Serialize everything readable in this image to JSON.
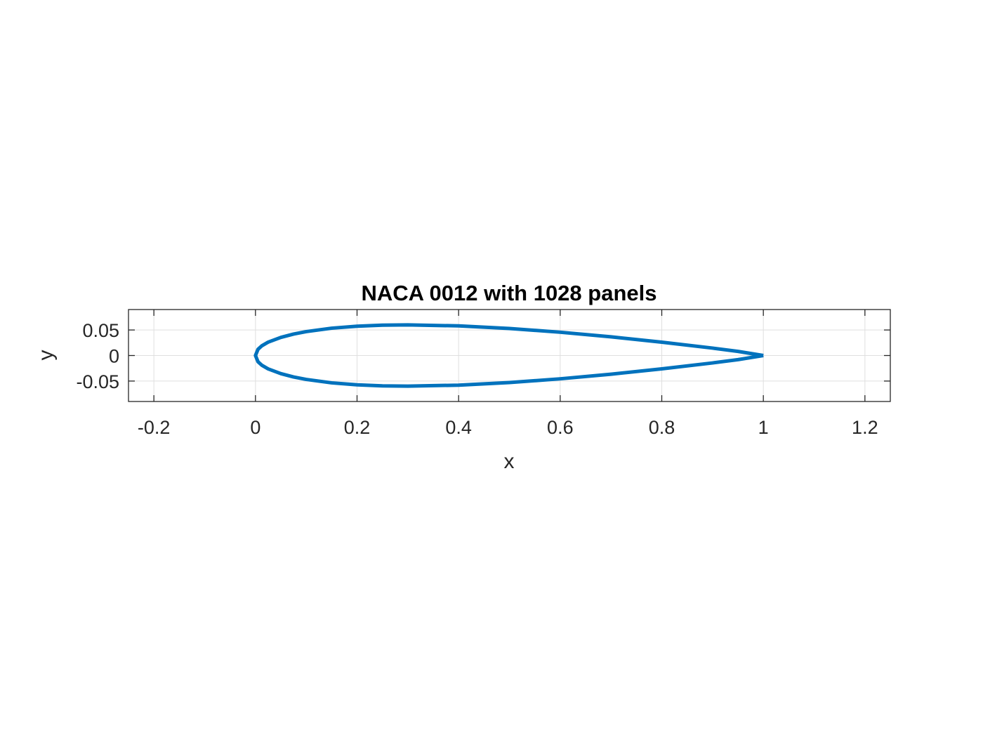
{
  "chart_data": {
    "type": "line",
    "title": "NACA 0012 with 1028 panels",
    "xlabel": "x",
    "ylabel": "y",
    "xlim": [
      -0.25,
      1.25
    ],
    "ylim": [
      -0.09,
      0.09
    ],
    "xticks": [
      -0.2,
      0,
      0.2,
      0.4,
      0.6,
      0.8,
      1,
      1.2
    ],
    "xtick_labels": [
      "-0.2",
      "0",
      "0.2",
      "0.4",
      "0.6",
      "0.8",
      "1",
      "1.2"
    ],
    "yticks": [
      -0.05,
      0,
      0.05
    ],
    "ytick_labels": [
      "-0.05",
      "0",
      "0.05"
    ],
    "grid": true,
    "aspect": "equal",
    "series": [
      {
        "color": "#0072BD",
        "x": [
          1.0,
          0.95,
          0.9,
          0.8,
          0.7,
          0.6,
          0.5,
          0.4,
          0.3,
          0.25,
          0.2,
          0.15,
          0.1,
          0.075,
          0.05,
          0.025,
          0.0125,
          0.005,
          0.0,
          0.005,
          0.0125,
          0.025,
          0.05,
          0.075,
          0.1,
          0.15,
          0.2,
          0.25,
          0.3,
          0.4,
          0.5,
          0.6,
          0.7,
          0.8,
          0.9,
          0.95,
          1.0
        ],
        "y": [
          0.0,
          0.0081,
          0.0145,
          0.0261,
          0.0366,
          0.0456,
          0.0529,
          0.058,
          0.06,
          0.0594,
          0.0574,
          0.0535,
          0.0468,
          0.042,
          0.0355,
          0.0262,
          0.019,
          0.0122,
          0.0,
          -0.0122,
          -0.019,
          -0.0262,
          -0.0355,
          -0.042,
          -0.0468,
          -0.0535,
          -0.0574,
          -0.0594,
          -0.06,
          -0.058,
          -0.0529,
          -0.0456,
          -0.0366,
          -0.0261,
          -0.0145,
          -0.0081,
          0.0
        ]
      }
    ]
  }
}
